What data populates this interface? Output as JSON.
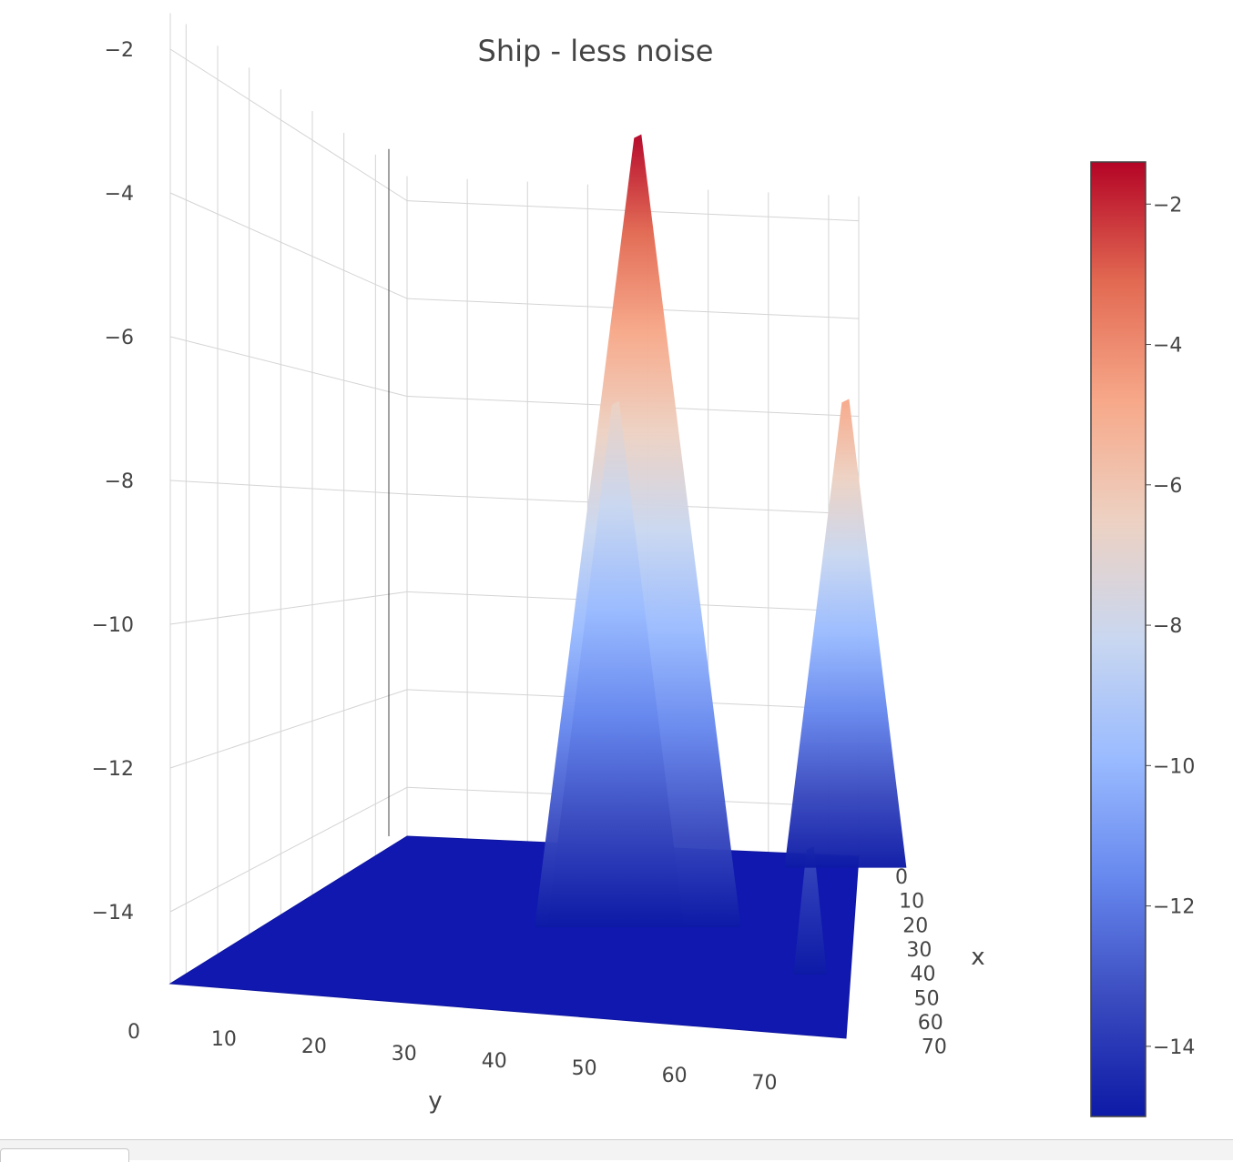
{
  "chart_data": {
    "type": "surface",
    "title": "Ship - less noise",
    "xlabel": "x",
    "ylabel": "y",
    "zlabel": "",
    "x_ticks": [
      0,
      10,
      20,
      30,
      40,
      50,
      60,
      70
    ],
    "y_ticks": [
      0,
      10,
      20,
      30,
      40,
      50,
      60,
      70
    ],
    "z_ticks": [
      -2,
      -4,
      -6,
      -8,
      -10,
      -12,
      -14
    ],
    "z_range": [
      -15,
      -1.5
    ],
    "baseline_z": -15,
    "colorscale": [
      "#0d1aa6",
      "#3b4cc0",
      "#6788ee",
      "#9abbff",
      "#c9d7f0",
      "#edd1c2",
      "#f7a889",
      "#e26952",
      "#b40426"
    ],
    "colorbar_ticks": [
      -2,
      -4,
      -6,
      -8,
      -10,
      -12,
      -14
    ],
    "colorbar_range": [
      -15,
      -1.4
    ],
    "peaks": [
      {
        "y": 46,
        "x": 35,
        "z": -1.7
      },
      {
        "y": 43,
        "x": 35,
        "z": -6.2
      },
      {
        "y": 70,
        "x": 50,
        "z": -13.0
      },
      {
        "y": 73,
        "x": 5,
        "z": -5.7
      }
    ]
  }
}
